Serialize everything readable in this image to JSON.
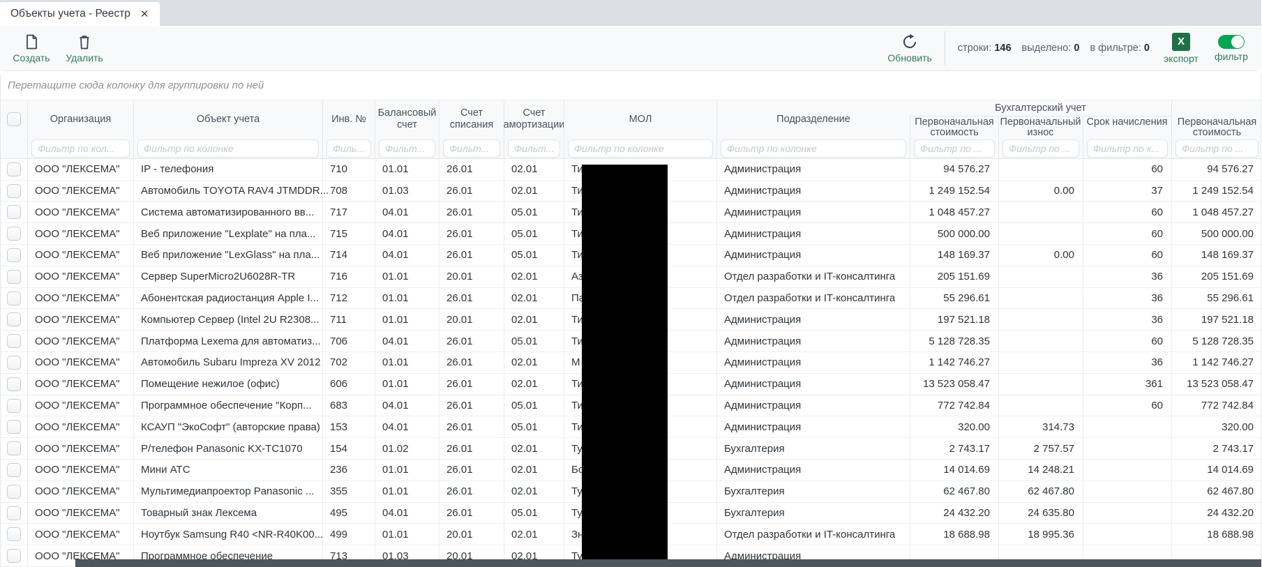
{
  "tab": {
    "title": "Объекты учета - Реестр",
    "close_glyph": "✕"
  },
  "toolbar": {
    "create_label": "Создать",
    "delete_label": "Удалить",
    "refresh_label": "Обновить",
    "counters": [
      {
        "label": "строки:",
        "value": "146"
      },
      {
        "label": "выделено:",
        "value": "0"
      },
      {
        "label": "в фильтре:",
        "value": "0"
      }
    ],
    "export_icon_letter": "X",
    "export_label": "экспорт",
    "filter_label": "фильтр"
  },
  "group_bar": {
    "hint": "Перетащите сюда колонку для группировки по ней"
  },
  "grid": {
    "group_header": "Бухгалтерский учет",
    "columns": [
      {
        "key": "org",
        "title": "Организация",
        "placeholder": "Фильтр по кол..."
      },
      {
        "key": "object",
        "title": "Объект учета",
        "placeholder": "Фильтр по колонке"
      },
      {
        "key": "inv",
        "title": "Инв. №",
        "placeholder": "Филь..."
      },
      {
        "key": "bal",
        "title": "Балансовый счет",
        "placeholder": "Фильт..."
      },
      {
        "key": "spis",
        "title": "Счет списания",
        "placeholder": "Фильт..."
      },
      {
        "key": "amort",
        "title": "Счет амортизации",
        "placeholder": "Фильт..."
      },
      {
        "key": "mol",
        "title": "МОЛ",
        "placeholder": "Фильтр по колонке"
      },
      {
        "key": "subdiv",
        "title": "Подразделение",
        "placeholder": "Фильтр по колонке"
      },
      {
        "key": "cost1",
        "title": "Первоначальная стоимость",
        "placeholder": "Фильтр по ..."
      },
      {
        "key": "wear",
        "title": "Первоначальный износ",
        "placeholder": "Фильтр по ..."
      },
      {
        "key": "term",
        "title": "Срок начисления",
        "placeholder": "Фильтр по к..."
      },
      {
        "key": "cost2",
        "title": "Первоначальная стоимость",
        "placeholder": "Фильтр по ..."
      }
    ],
    "rows": [
      {
        "org": "ООО \"ЛЕКСЕМА\"",
        "object": "IP - телефония",
        "inv": "710",
        "bal": "01.01",
        "spis": "26.01",
        "amort": "02.01",
        "mol": "Ти",
        "subdiv": "Администрация",
        "cost1": "94 576.27",
        "wear": "",
        "term": "60",
        "cost2": "94 576.27"
      },
      {
        "org": "ООО \"ЛЕКСЕМА\"",
        "object": "Автомобиль TOYOTA RAV4 JTMDDR...",
        "inv": "708",
        "bal": "01.03",
        "spis": "26.01",
        "amort": "02.01",
        "mol": "Ти",
        "subdiv": "Администрация",
        "cost1": "1 249 152.54",
        "wear": "0.00",
        "term": "37",
        "cost2": "1 249 152.54"
      },
      {
        "org": "ООО \"ЛЕКСЕМА\"",
        "object": "Система автоматизированного вв...",
        "inv": "717",
        "bal": "04.01",
        "spis": "26.01",
        "amort": "05.01",
        "mol": "Ти",
        "subdiv": "Администрация",
        "cost1": "1 048 457.27",
        "wear": "",
        "term": "60",
        "cost2": "1 048 457.27"
      },
      {
        "org": "ООО \"ЛЕКСЕМА\"",
        "object": "Веб приложение \"Lexplate\" на пла...",
        "inv": "715",
        "bal": "04.01",
        "spis": "26.01",
        "amort": "05.01",
        "mol": "Ти",
        "subdiv": "Администрация",
        "cost1": "500 000.00",
        "wear": "",
        "term": "60",
        "cost2": "500 000.00"
      },
      {
        "org": "ООО \"ЛЕКСЕМА\"",
        "object": "Веб приложение \"LexGlass\" на пла...",
        "inv": "714",
        "bal": "04.01",
        "spis": "26.01",
        "amort": "05.01",
        "mol": "Ти",
        "subdiv": "Администрация",
        "cost1": "148 169.37",
        "wear": "0.00",
        "term": "60",
        "cost2": "148 169.37"
      },
      {
        "org": "ООО \"ЛЕКСЕМА\"",
        "object": "Сервер SuperMicro2U6028R-TR",
        "inv": "716",
        "bal": "01.01",
        "spis": "20.01",
        "amort": "02.01",
        "mol": "Аз",
        "subdiv": "Отдел разработки и IT-консалтинга",
        "cost1": "205 151.69",
        "wear": "",
        "term": "36",
        "cost2": "205 151.69"
      },
      {
        "org": "ООО \"ЛЕКСЕМА\"",
        "object": "Абонентская радиостанция Apple I...",
        "inv": "712",
        "bal": "01.01",
        "spis": "26.01",
        "amort": "02.01",
        "mol": "Па",
        "subdiv": "Отдел разработки и IT-консалтинга",
        "cost1": "55 296.61",
        "wear": "",
        "term": "36",
        "cost2": "55 296.61"
      },
      {
        "org": "ООО \"ЛЕКСЕМА\"",
        "object": "Компьютер Сервер (Intel 2U R2308...",
        "inv": "711",
        "bal": "01.01",
        "spis": "20.01",
        "amort": "02.01",
        "mol": "Ти",
        "subdiv": "Администрация",
        "cost1": "197 521.18",
        "wear": "",
        "term": "36",
        "cost2": "197 521.18"
      },
      {
        "org": "ООО \"ЛЕКСЕМА\"",
        "object": "Платформа Lexema для автоматиз...",
        "inv": "706",
        "bal": "04.01",
        "spis": "26.01",
        "amort": "05.01",
        "mol": "Ти",
        "subdiv": "Администрация",
        "cost1": "5 128 728.35",
        "wear": "",
        "term": "60",
        "cost2": "5 128 728.35"
      },
      {
        "org": "ООО \"ЛЕКСЕМА\"",
        "object": "Автомобиль Subaru Impreza XV 2012",
        "inv": "702",
        "bal": "01.01",
        "spis": "26.01",
        "amort": "02.01",
        "mol": "М",
        "subdiv": "Администрация",
        "cost1": "1 142 746.27",
        "wear": "",
        "term": "36",
        "cost2": "1 142 746.27"
      },
      {
        "org": "ООО \"ЛЕКСЕМА\"",
        "object": "Помещение нежилое (офис)",
        "inv": "606",
        "bal": "01.01",
        "spis": "26.01",
        "amort": "02.01",
        "mol": "Ти",
        "subdiv": "Администрация",
        "cost1": "13 523 058.47",
        "wear": "",
        "term": "361",
        "cost2": "13 523 058.47"
      },
      {
        "org": "ООО \"ЛЕКСЕМА\"",
        "object": "Программное обеспечение \"Корп...",
        "inv": "683",
        "bal": "04.01",
        "spis": "26.01",
        "amort": "05.01",
        "mol": "Ти",
        "subdiv": "Администрация",
        "cost1": "772 742.84",
        "wear": "",
        "term": "60",
        "cost2": "772 742.84"
      },
      {
        "org": "ООО \"ЛЕКСЕМА\"",
        "object": "КСАУП \"ЭкоСофт\" (авторские права)",
        "inv": "153",
        "bal": "04.01",
        "spis": "26.01",
        "amort": "05.01",
        "mol": "Ти",
        "subdiv": "Администрация",
        "cost1": "320.00",
        "wear": "314.73",
        "term": "",
        "cost2": "320.00"
      },
      {
        "org": "ООО \"ЛЕКСЕМА\"",
        "object": "Р/телефон Panasonic KX-TC1070",
        "inv": "154",
        "bal": "01.02",
        "spis": "26.01",
        "amort": "02.01",
        "mol": "Ту",
        "subdiv": "Бухгалтерия",
        "cost1": "2 743.17",
        "wear": "2 757.57",
        "term": "",
        "cost2": "2 743.17"
      },
      {
        "org": "ООО \"ЛЕКСЕМА\"",
        "object": "Мини АТС",
        "inv": "236",
        "bal": "01.01",
        "spis": "26.01",
        "amort": "02.01",
        "mol": "Бо",
        "subdiv": "Администрация",
        "cost1": "14 014.69",
        "wear": "14 248.21",
        "term": "",
        "cost2": "14 014.69"
      },
      {
        "org": "ООО \"ЛЕКСЕМА\"",
        "object": "Мультимедиапроектор Panasonic ...",
        "inv": "355",
        "bal": "01.01",
        "spis": "26.01",
        "amort": "02.01",
        "mol": "Ту",
        "subdiv": "Бухгалтерия",
        "cost1": "62 467.80",
        "wear": "62 467.80",
        "term": "",
        "cost2": "62 467.80"
      },
      {
        "org": "ООО \"ЛЕКСЕМА\"",
        "object": "Товарный знак Лексема",
        "inv": "495",
        "bal": "04.01",
        "spis": "26.01",
        "amort": "05.01",
        "mol": "Ту",
        "subdiv": "Бухгалтерия",
        "cost1": "24 432.20",
        "wear": "24 635.80",
        "term": "",
        "cost2": "24 432.20"
      },
      {
        "org": "ООО \"ЛЕКСЕМА\"",
        "object": "Ноутбук Samsung R40 <NR-R40K00...",
        "inv": "499",
        "bal": "01.01",
        "spis": "20.01",
        "amort": "02.01",
        "mol": "Зн",
        "subdiv": "Отдел разработки и IT-консалтинга",
        "cost1": "18 688.98",
        "wear": "18 995.36",
        "term": "",
        "cost2": "18 688.98"
      }
    ],
    "partial_row": {
      "org": "ООО \"ЛЕКСЕМА\"",
      "object": "Программное обеспечение",
      "inv": "713",
      "bal": "01.03",
      "spis": "20.01",
      "amort": "02.01",
      "mol": "Ту",
      "subdiv": "Администрация",
      "cost1": "",
      "wear": "",
      "term": "",
      "cost2": ""
    }
  },
  "colors": {
    "accent_green": "#2f7e52",
    "export_green": "#1e7145",
    "toggle_green": "#00a650",
    "icon_dark": "#3c454e",
    "redaction_black": "#000000",
    "scrollbar_dark": "#4d555d"
  }
}
